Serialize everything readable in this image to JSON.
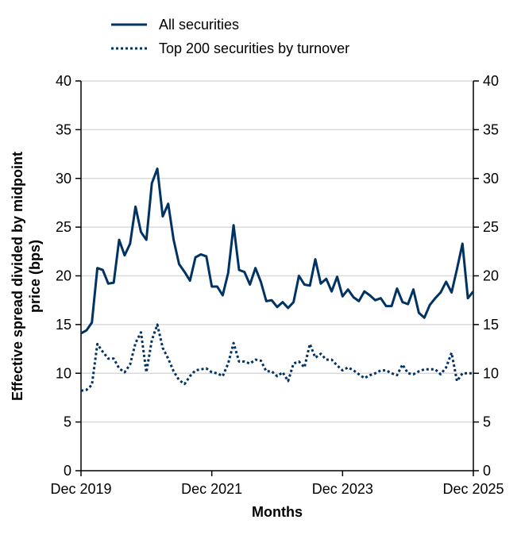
{
  "chart_data": {
    "type": "line",
    "xlabel": "Months",
    "ylabel": "Effective spread divided by midpoint price (bps)",
    "ylim": [
      0,
      40
    ],
    "yticks": [
      0,
      5,
      10,
      15,
      20,
      25,
      30,
      35,
      40
    ],
    "xticks": [
      "Dec 2019",
      "Dec 2021",
      "Dec 2023",
      "Dec 2025"
    ],
    "grid": "horizontal",
    "legend": "top",
    "color": "#003262",
    "x": [
      "2019-12",
      "2020-01",
      "2020-02",
      "2020-03",
      "2020-04",
      "2020-05",
      "2020-06",
      "2020-07",
      "2020-08",
      "2020-09",
      "2020-10",
      "2020-11",
      "2020-12",
      "2021-01",
      "2021-02",
      "2021-03",
      "2021-04",
      "2021-05",
      "2021-06",
      "2021-07",
      "2021-08",
      "2021-09",
      "2021-10",
      "2021-11",
      "2021-12",
      "2022-01",
      "2022-02",
      "2022-03",
      "2022-04",
      "2022-05",
      "2022-06",
      "2022-07",
      "2022-08",
      "2022-09",
      "2022-10",
      "2022-11",
      "2022-12",
      "2023-01",
      "2023-02",
      "2023-03",
      "2023-04",
      "2023-05",
      "2023-06",
      "2023-07",
      "2023-08",
      "2023-09",
      "2023-10",
      "2023-11",
      "2023-12",
      "2024-01",
      "2024-02",
      "2024-03",
      "2024-04",
      "2024-05",
      "2024-06",
      "2024-07",
      "2024-08",
      "2024-09",
      "2024-10",
      "2024-11",
      "2024-12",
      "2025-01",
      "2025-02",
      "2025-03",
      "2025-04",
      "2025-05",
      "2025-06",
      "2025-07",
      "2025-08",
      "2025-09",
      "2025-10",
      "2025-11",
      "2025-12"
    ],
    "series": [
      {
        "name": "All securities",
        "style": "solid",
        "values": [
          14.1,
          14.4,
          15.2,
          20.8,
          20.6,
          19.2,
          19.3,
          23.7,
          22.1,
          23.3,
          27.1,
          24.5,
          23.7,
          29.5,
          31.0,
          26.1,
          27.4,
          23.7,
          21.2,
          20.4,
          19.5,
          21.9,
          22.2,
          22.0,
          18.9,
          18.9,
          18.0,
          20.3,
          25.2,
          20.6,
          20.4,
          19.1,
          20.8,
          19.4,
          17.4,
          17.5,
          16.8,
          17.3,
          16.7,
          17.3,
          20.0,
          19.1,
          19.0,
          21.7,
          19.2,
          19.7,
          18.4,
          19.9,
          17.9,
          18.6,
          17.8,
          17.4,
          18.4,
          18.0,
          17.5,
          17.7,
          16.9,
          16.9,
          18.7,
          17.3,
          17.1,
          18.6,
          16.2,
          15.7,
          17.0,
          17.7,
          18.3,
          19.4,
          18.3,
          20.7,
          23.3,
          17.7,
          18.4
        ]
      },
      {
        "name": "Top 200 securities by turnover",
        "style": "dotted",
        "values": [
          8.2,
          8.3,
          8.8,
          13.0,
          12.2,
          11.5,
          11.5,
          10.5,
          10.1,
          10.9,
          13.1,
          14.2,
          10.1,
          13.4,
          15.0,
          12.6,
          11.5,
          10.2,
          9.3,
          8.9,
          9.7,
          10.3,
          10.4,
          10.5,
          10.1,
          10.0,
          9.7,
          11.0,
          13.1,
          11.2,
          11.2,
          11.0,
          11.4,
          11.3,
          10.2,
          10.2,
          9.7,
          10.1,
          9.2,
          11.0,
          11.2,
          10.6,
          13.0,
          11.6,
          12.0,
          11.4,
          11.4,
          10.8,
          10.3,
          10.6,
          10.3,
          9.9,
          9.5,
          9.8,
          10.0,
          10.3,
          10.3,
          10.0,
          9.8,
          10.9,
          10.0,
          9.9,
          10.2,
          10.4,
          10.4,
          10.4,
          9.9,
          10.6,
          12.1,
          9.2,
          10.0,
          10.0,
          10.0
        ]
      }
    ]
  }
}
